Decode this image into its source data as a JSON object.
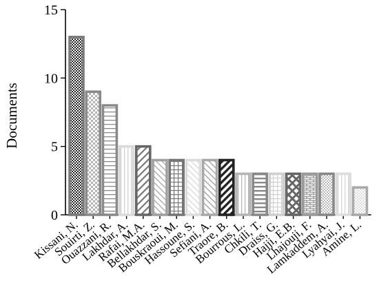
{
  "chart_data": {
    "type": "bar",
    "title": "",
    "xlabel": "",
    "ylabel": "Documents",
    "ylim": [
      0,
      15
    ],
    "yticks": [
      0,
      5,
      10,
      15
    ],
    "grid": false,
    "categories": [
      "Kissani, N.",
      "Souirti, Z.",
      "Ouazzani, R.",
      "Lakhdar, A.",
      "Rafai, M.A.",
      "Bellakhdar, S.",
      "Bouskraoui, M.",
      "Hassoune, S.",
      "Sefiani, A.",
      "Traore, B.",
      "Bourrous, L.",
      "Chkili, T.",
      "Draiss, G.",
      "Hajji, E.B.",
      "Lhajouji, F.",
      "Lamkaddem, A.",
      "Lyahyai, J.",
      "Amine, L."
    ],
    "values": [
      13,
      9,
      8,
      5,
      5,
      4,
      4,
      4,
      4,
      4,
      3,
      3,
      3,
      3,
      3,
      3,
      3,
      2
    ],
    "bar_styles": [
      {
        "pattern": "checker-fine",
        "stroke": "#7a7a7a",
        "ink": "#222222"
      },
      {
        "pattern": "checker",
        "stroke": "#8a8a8a",
        "ink": "#b5b5b5"
      },
      {
        "pattern": "hlines",
        "stroke": "#8a8a8a",
        "ink": "#8a8a8a"
      },
      {
        "pattern": "vlines",
        "stroke": "#dadada",
        "ink": "#d0d0d0"
      },
      {
        "pattern": "diag-right",
        "stroke": "#666666",
        "ink": "#777777"
      },
      {
        "pattern": "diag-left",
        "stroke": "#a0a0a0",
        "ink": "#b0b0b0"
      },
      {
        "pattern": "grid",
        "stroke": "#777777",
        "ink": "#777777"
      },
      {
        "pattern": "diag-left-light",
        "stroke": "#dcdcdc",
        "ink": "#dcdcdc"
      },
      {
        "pattern": "diag-left",
        "stroke": "#a8a8a8",
        "ink": "#a8a8a8"
      },
      {
        "pattern": "diag-bold",
        "stroke": "#222222",
        "ink": "#222222"
      },
      {
        "pattern": "vlines",
        "stroke": "#b5b5b5",
        "ink": "#b5b5b5"
      },
      {
        "pattern": "hlines-bold",
        "stroke": "#888888",
        "ink": "#888888"
      },
      {
        "pattern": "grid-light",
        "stroke": "#cfcfcf",
        "ink": "#cfcfcf"
      },
      {
        "pattern": "crosshatch",
        "stroke": "#666666",
        "ink": "#666666"
      },
      {
        "pattern": "brick",
        "stroke": "#999999",
        "ink": "#999999"
      },
      {
        "pattern": "dots",
        "stroke": "#888888",
        "ink": "#888888"
      },
      {
        "pattern": "vlines-light",
        "stroke": "#dddddd",
        "ink": "#d5d5d5"
      },
      {
        "pattern": "dots-small",
        "stroke": "#aaaaaa",
        "ink": "#aaaaaa"
      }
    ]
  }
}
